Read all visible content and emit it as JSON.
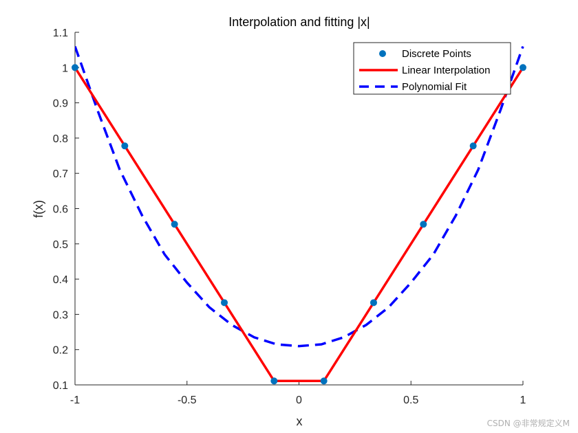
{
  "chart_data": {
    "type": "line",
    "title": "Interpolation and fitting |x|",
    "xlabel": "x",
    "ylabel": "f(x)",
    "xlim": [
      -1,
      1
    ],
    "ylim": [
      0.1,
      1.1
    ],
    "xticks": [
      -1,
      -0.5,
      0,
      0.5,
      1
    ],
    "xtick_labels": [
      "-1",
      "-0.5",
      "0",
      "0.5",
      "1"
    ],
    "yticks": [
      0.1,
      0.2,
      0.3,
      0.4,
      0.5,
      0.6,
      0.7,
      0.8,
      0.9,
      1.0,
      1.1
    ],
    "ytick_labels": [
      "0.1",
      "0.2",
      "0.3",
      "0.4",
      "0.5",
      "0.6",
      "0.7",
      "0.8",
      "0.9",
      "1",
      "1.1"
    ],
    "grid": false,
    "legend_position": "top-right",
    "series": [
      {
        "name": "Discrete Points",
        "style": "markers",
        "color": "#0072BD",
        "x": [
          -1,
          -0.7778,
          -0.5556,
          -0.3333,
          -0.1111,
          0.1111,
          0.3333,
          0.5556,
          0.7778,
          1
        ],
        "y": [
          1,
          0.7778,
          0.5556,
          0.3333,
          0.1111,
          0.1111,
          0.3333,
          0.5556,
          0.7778,
          1
        ]
      },
      {
        "name": "Linear Interpolation",
        "style": "solid",
        "color": "#FF0000",
        "x": [
          -1,
          -0.7778,
          -0.5556,
          -0.3333,
          -0.1111,
          0.1111,
          0.3333,
          0.5556,
          0.7778,
          1
        ],
        "y": [
          1,
          0.7778,
          0.5556,
          0.3333,
          0.1111,
          0.1111,
          0.3333,
          0.5556,
          0.7778,
          1
        ]
      },
      {
        "name": "Polynomial Fit",
        "style": "dashed",
        "color": "#0000FF",
        "x": [
          -1,
          -0.9,
          -0.8,
          -0.7,
          -0.6,
          -0.5,
          -0.4,
          -0.3,
          -0.2,
          -0.1,
          0,
          0.1,
          0.2,
          0.3,
          0.4,
          0.5,
          0.6,
          0.7,
          0.8,
          0.9,
          1
        ],
        "y": [
          1.06,
          0.88,
          0.71,
          0.58,
          0.47,
          0.39,
          0.32,
          0.27,
          0.235,
          0.215,
          0.21,
          0.215,
          0.235,
          0.27,
          0.32,
          0.39,
          0.47,
          0.58,
          0.71,
          0.88,
          1.06
        ]
      }
    ]
  },
  "watermark": "CSDN @非常规定义M"
}
